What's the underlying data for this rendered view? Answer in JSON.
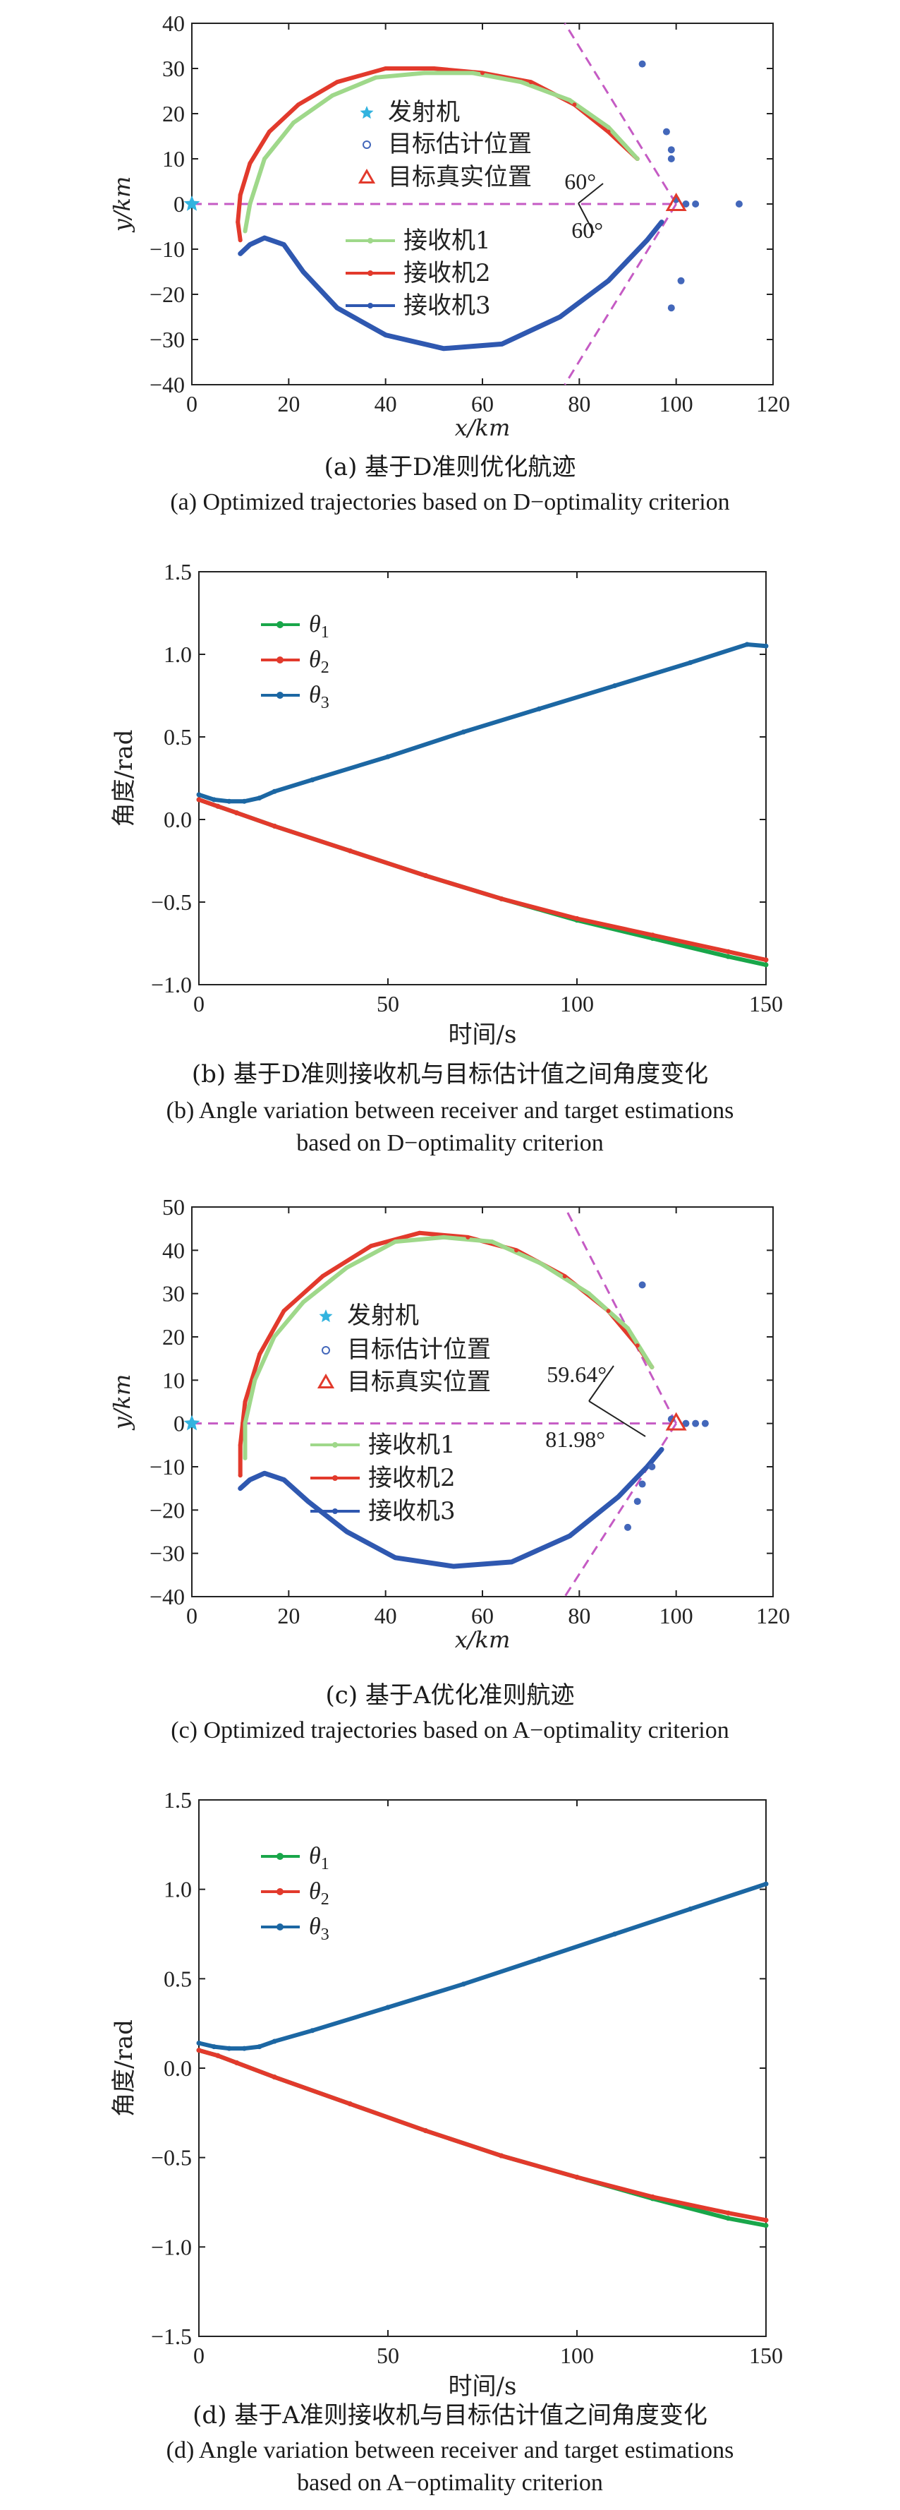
{
  "colors": {
    "receiver1": "#9fd88a",
    "receiver2": "#e23a2c",
    "receiver3": "#2f58b0",
    "transmitter": "#32b3df",
    "estimates": "#4367ba",
    "true_target": "#e23a2c",
    "guide": "#c55bc4",
    "theta1": "#19a64a",
    "theta2": "#e23a2c",
    "theta3": "#1c67a3",
    "overlap": "#c7a13c"
  },
  "captions": {
    "a": [
      "(a) 基于D准则优化航迹",
      "(a) Optimized trajectories based on D−optimality criterion"
    ],
    "b": [
      "(b) 基于D准则接收机与目标估计值之间角度变化",
      "(b) Angle variation between receiver and target estimations",
      "based on D−optimality criterion"
    ],
    "c": [
      "(c) 基于A优化准则航迹",
      "(c) Optimized trajectories based on A−optimality criterion"
    ],
    "d": [
      "(d) 基于A准则接收机与目标估计值之间角度变化",
      "(d) Angle variation between receiver and target estimations",
      "based on A−optimality criterion"
    ]
  },
  "chart_data": [
    {
      "id": "a",
      "type": "line",
      "xlabel": "x/km",
      "ylabel": "y/km",
      "xlim": [
        0,
        120
      ],
      "ylim": [
        -40,
        40
      ],
      "xticks": [
        0,
        20,
        40,
        60,
        80,
        100,
        120
      ],
      "yticks": [
        -40,
        -30,
        -20,
        -10,
        0,
        10,
        20,
        30,
        40
      ],
      "legend_top": [
        "发射机",
        "目标估计位置",
        "目标真实位置"
      ],
      "legend_bottom": [
        "接收机1",
        "接收机2",
        "接收机3"
      ],
      "annotations": [
        "60°",
        "60°"
      ],
      "transmitter": [
        0,
        0
      ],
      "true_target": [
        100,
        0
      ],
      "estimates": [
        [
          93,
          31
        ],
        [
          98,
          16
        ],
        [
          99,
          12
        ],
        [
          99,
          10
        ],
        [
          100,
          1
        ],
        [
          102,
          0
        ],
        [
          104,
          0
        ],
        [
          101,
          -17
        ],
        [
          99,
          -23
        ],
        [
          113,
          0
        ]
      ],
      "receiver1": [
        [
          11,
          -6
        ],
        [
          12,
          0
        ],
        [
          15,
          10
        ],
        [
          21,
          18
        ],
        [
          29,
          24
        ],
        [
          38,
          28
        ],
        [
          48,
          29
        ],
        [
          58,
          29
        ],
        [
          68,
          27
        ],
        [
          78,
          23
        ],
        [
          86,
          17
        ],
        [
          92,
          10
        ]
      ],
      "receiver2": [
        [
          10,
          -8
        ],
        [
          9.5,
          -4
        ],
        [
          10,
          2
        ],
        [
          12,
          9
        ],
        [
          16,
          16
        ],
        [
          22,
          22
        ],
        [
          30,
          27
        ],
        [
          40,
          30
        ],
        [
          50,
          30
        ],
        [
          60,
          29
        ],
        [
          70,
          27
        ],
        [
          79,
          22
        ],
        [
          86,
          16
        ],
        [
          92,
          10
        ]
      ],
      "receiver3": [
        [
          10,
          -11
        ],
        [
          12,
          -9
        ],
        [
          15,
          -7.5
        ],
        [
          19,
          -9
        ],
        [
          23,
          -15
        ],
        [
          30,
          -23
        ],
        [
          40,
          -29
        ],
        [
          52,
          -32
        ],
        [
          64,
          -31
        ],
        [
          76,
          -25
        ],
        [
          86,
          -17
        ],
        [
          94,
          -8
        ],
        [
          97,
          -4
        ]
      ],
      "guide_lines": [
        [
          [
            100,
            0
          ],
          [
            77,
            40
          ]
        ],
        [
          [
            100,
            0
          ],
          [
            77,
            -40
          ]
        ],
        [
          [
            0,
            0
          ],
          [
            100,
            0
          ]
        ]
      ]
    },
    {
      "id": "b",
      "type": "line",
      "xlabel": "时间/s",
      "ylabel": "角度/rad",
      "xlim": [
        0,
        150
      ],
      "ylim": [
        -1.0,
        1.5
      ],
      "xticks": [
        0,
        50,
        100,
        150
      ],
      "yticks": [
        -1.0,
        -0.5,
        0,
        0.5,
        1.0,
        1.5
      ],
      "series": [
        {
          "name": "θ1",
          "x": [
            0,
            5,
            10,
            20,
            40,
            60,
            80,
            100,
            120,
            140,
            150
          ],
          "values": [
            0.12,
            0.08,
            0.04,
            -0.04,
            -0.19,
            -0.34,
            -0.48,
            -0.61,
            -0.72,
            -0.83,
            -0.88
          ]
        },
        {
          "name": "θ2",
          "x": [
            0,
            5,
            10,
            20,
            40,
            60,
            80,
            100,
            120,
            140,
            150
          ],
          "values": [
            0.12,
            0.08,
            0.04,
            -0.04,
            -0.19,
            -0.34,
            -0.48,
            -0.6,
            -0.7,
            -0.8,
            -0.85
          ]
        },
        {
          "name": "θ3",
          "x": [
            0,
            4,
            8,
            12,
            16,
            20,
            30,
            50,
            70,
            90,
            110,
            130,
            145,
            150
          ],
          "values": [
            0.15,
            0.12,
            0.11,
            0.11,
            0.13,
            0.17,
            0.24,
            0.38,
            0.53,
            0.67,
            0.81,
            0.95,
            1.06,
            1.05
          ]
        }
      ]
    },
    {
      "id": "c",
      "type": "line",
      "xlabel": "x/km",
      "ylabel": "y/km",
      "xlim": [
        0,
        120
      ],
      "ylim": [
        -40,
        50
      ],
      "xticks": [
        0,
        20,
        40,
        60,
        80,
        100,
        120
      ],
      "yticks": [
        -40,
        -30,
        -20,
        -10,
        0,
        10,
        20,
        30,
        40,
        50
      ],
      "legend_top": [
        "发射机",
        "目标估计位置",
        "目标真实位置"
      ],
      "legend_bottom": [
        "接收机1",
        "接收机2",
        "接收机3"
      ],
      "annotations": [
        "59.64°",
        "81.98°"
      ],
      "transmitter": [
        0,
        0
      ],
      "true_target": [
        100,
        0
      ],
      "estimates": [
        [
          93,
          32
        ],
        [
          99,
          1
        ],
        [
          102,
          0
        ],
        [
          104,
          0
        ],
        [
          106,
          0
        ],
        [
          95,
          -10
        ],
        [
          93,
          -14
        ],
        [
          92,
          -18
        ],
        [
          90,
          -24
        ]
      ],
      "receiver1": [
        [
          11,
          -8
        ],
        [
          11,
          0
        ],
        [
          13,
          10
        ],
        [
          17,
          20
        ],
        [
          23,
          28
        ],
        [
          32,
          36
        ],
        [
          42,
          42
        ],
        [
          52,
          43
        ],
        [
          62,
          42
        ],
        [
          72,
          37
        ],
        [
          82,
          30
        ],
        [
          90,
          22
        ],
        [
          95,
          13
        ]
      ],
      "receiver2": [
        [
          10,
          -12
        ],
        [
          10,
          -5
        ],
        [
          11,
          5
        ],
        [
          14,
          16
        ],
        [
          19,
          26
        ],
        [
          27,
          34
        ],
        [
          37,
          41
        ],
        [
          47,
          44
        ],
        [
          57,
          43
        ],
        [
          67,
          40
        ],
        [
          77,
          34
        ],
        [
          86,
          26
        ],
        [
          92,
          18
        ],
        [
          95,
          13
        ]
      ],
      "receiver3": [
        [
          10,
          -15
        ],
        [
          12,
          -13
        ],
        [
          15,
          -11.5
        ],
        [
          19,
          -13
        ],
        [
          24,
          -18
        ],
        [
          32,
          -25
        ],
        [
          42,
          -31
        ],
        [
          54,
          -33
        ],
        [
          66,
          -32
        ],
        [
          78,
          -26
        ],
        [
          88,
          -17
        ],
        [
          94,
          -10
        ],
        [
          97,
          -6
        ]
      ],
      "guide_lines": [
        [
          [
            100,
            0
          ],
          [
            77,
            50
          ]
        ],
        [
          [
            100,
            0
          ],
          [
            77,
            -40
          ]
        ],
        [
          [
            0,
            0
          ],
          [
            100,
            0
          ]
        ]
      ]
    },
    {
      "id": "d",
      "type": "line",
      "xlabel": "时间/s",
      "ylabel": "角度/rad",
      "xlim": [
        0,
        150
      ],
      "ylim": [
        -1.5,
        1.5
      ],
      "xticks": [
        0,
        50,
        100,
        150
      ],
      "yticks": [
        -1.5,
        -1.0,
        -0.5,
        0,
        0.5,
        1.0,
        1.5
      ],
      "series": [
        {
          "name": "θ1",
          "x": [
            0,
            5,
            10,
            20,
            40,
            60,
            80,
            100,
            120,
            140,
            150
          ],
          "values": [
            0.1,
            0.07,
            0.03,
            -0.05,
            -0.2,
            -0.35,
            -0.49,
            -0.61,
            -0.73,
            -0.84,
            -0.88
          ]
        },
        {
          "name": "θ2",
          "x": [
            0,
            5,
            10,
            20,
            40,
            60,
            80,
            100,
            120,
            140,
            150
          ],
          "values": [
            0.1,
            0.07,
            0.03,
            -0.05,
            -0.2,
            -0.35,
            -0.49,
            -0.61,
            -0.72,
            -0.81,
            -0.85
          ]
        },
        {
          "name": "θ3",
          "x": [
            0,
            4,
            8,
            12,
            16,
            20,
            30,
            50,
            70,
            90,
            110,
            130,
            150
          ],
          "values": [
            0.14,
            0.12,
            0.11,
            0.11,
            0.12,
            0.15,
            0.21,
            0.34,
            0.47,
            0.61,
            0.75,
            0.89,
            1.03
          ]
        }
      ]
    }
  ]
}
